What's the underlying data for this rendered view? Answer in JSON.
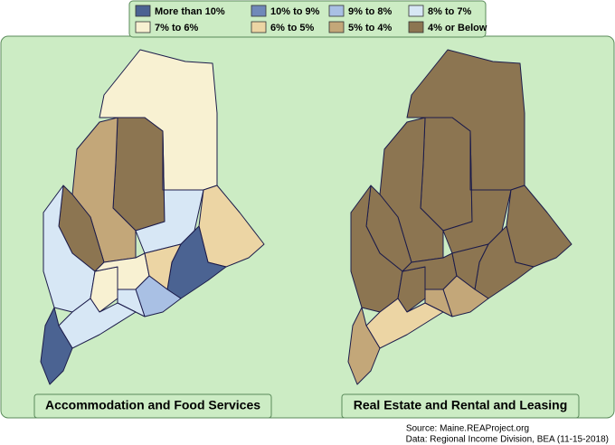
{
  "legend": {
    "items": [
      {
        "label": "More than 10%",
        "color": "#4b6392"
      },
      {
        "label": "10% to 9%",
        "color": "#7089b9"
      },
      {
        "label": "9% to 8%",
        "color": "#a9c0e4"
      },
      {
        "label": "8% to 7%",
        "color": "#d7e7f5"
      },
      {
        "label": "7% to 6%",
        "color": "#f8f1d2"
      },
      {
        "label": "6% to 5%",
        "color": "#ecd5a4"
      },
      {
        "label": "5% to 4%",
        "color": "#c3a779"
      },
      {
        "label": "4% or Below",
        "color": "#8c7551"
      }
    ]
  },
  "panels": [
    {
      "title": "Accommodation and Food Services"
    },
    {
      "title": "Real Estate and Rental and Leasing"
    }
  ],
  "footer": {
    "source": "Source: Maine.REAProject.org",
    "data": "Data: Regional Income Division, BEA (11-15-2018)"
  }
}
